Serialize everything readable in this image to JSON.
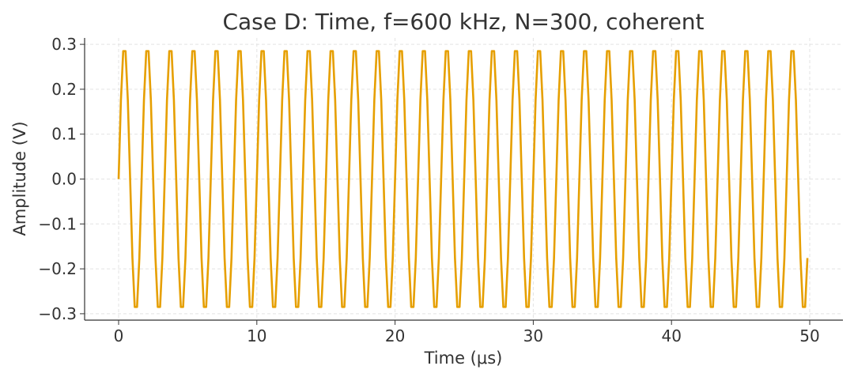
{
  "chart_data": {
    "type": "line",
    "title": "Case D: Time, f=600 kHz, N=300, coherent",
    "xlabel": "Time (μs)",
    "ylabel": "Amplitude (V)",
    "xlim": [
      -2.5,
      52.5
    ],
    "ylim": [
      -0.31,
      0.31
    ],
    "xticks": [
      0,
      10,
      20,
      30,
      40,
      50
    ],
    "yticks": [
      0.3,
      0.2,
      0.1,
      0.0,
      -0.1,
      -0.2,
      -0.3
    ],
    "xtick_labels": [
      "0",
      "10",
      "20",
      "30",
      "40",
      "50"
    ],
    "ytick_labels": [
      "0.3",
      "0.2",
      "0.1",
      "0.0",
      "−0.1",
      "−0.2",
      "−0.3"
    ],
    "grid": true,
    "color": "#E69F00",
    "x_start": 0,
    "x_step": 0.16667,
    "series": [
      {
        "values": [
          0,
          0.176,
          0.285,
          0.285,
          0.176,
          0,
          -0.176,
          -0.285,
          -0.285,
          -0.176,
          0,
          0.176,
          0.285,
          0.285,
          0.176,
          0,
          -0.176,
          -0.285,
          -0.285,
          -0.176,
          0,
          0.176,
          0.285,
          0.285,
          0.176,
          0,
          -0.176,
          -0.285,
          -0.285,
          -0.176,
          0,
          0.176,
          0.285,
          0.285,
          0.176,
          0,
          -0.176,
          -0.285,
          -0.285,
          -0.176,
          0,
          0.176,
          0.285,
          0.285,
          0.176,
          0,
          -0.176,
          -0.285,
          -0.285,
          -0.176,
          0,
          0.176,
          0.285,
          0.285,
          0.176,
          0,
          -0.176,
          -0.285,
          -0.285,
          -0.176,
          0,
          0.176,
          0.285,
          0.285,
          0.176,
          0,
          -0.176,
          -0.285,
          -0.285,
          -0.176,
          0,
          0.176,
          0.285,
          0.285,
          0.176,
          0,
          -0.176,
          -0.285,
          -0.285,
          -0.176,
          0,
          0.176,
          0.285,
          0.285,
          0.176,
          0,
          -0.176,
          -0.285,
          -0.285,
          -0.176,
          0,
          0.176,
          0.285,
          0.285,
          0.176,
          0,
          -0.176,
          -0.285,
          -0.285,
          -0.176,
          0,
          0.176,
          0.285,
          0.285,
          0.176,
          0,
          -0.176,
          -0.285,
          -0.285,
          -0.176,
          0,
          0.176,
          0.285,
          0.285,
          0.176,
          0,
          -0.176,
          -0.285,
          -0.285,
          -0.176,
          0,
          0.176,
          0.285,
          0.285,
          0.176,
          0,
          -0.176,
          -0.285,
          -0.285,
          -0.176,
          0,
          0.176,
          0.285,
          0.285,
          0.176,
          0,
          -0.176,
          -0.285,
          -0.285,
          -0.176,
          0,
          0.176,
          0.285,
          0.285,
          0.176,
          0,
          -0.176,
          -0.285,
          -0.285,
          -0.176,
          0,
          0.176,
          0.285,
          0.285,
          0.176,
          0,
          -0.176,
          -0.285,
          -0.285,
          -0.176,
          0,
          0.176,
          0.285,
          0.285,
          0.176,
          0,
          -0.176,
          -0.285,
          -0.285,
          -0.176,
          0,
          0.176,
          0.285,
          0.285,
          0.176,
          0,
          -0.176,
          -0.285,
          -0.285,
          -0.176,
          0,
          0.176,
          0.285,
          0.285,
          0.176,
          0,
          -0.176,
          -0.285,
          -0.285,
          -0.176,
          0,
          0.176,
          0.285,
          0.285,
          0.176,
          0,
          -0.176,
          -0.285,
          -0.285,
          -0.176,
          0,
          0.176,
          0.285,
          0.285,
          0.176,
          0,
          -0.176,
          -0.285,
          -0.285,
          -0.176,
          0,
          0.176,
          0.285,
          0.285,
          0.176,
          0,
          -0.176,
          -0.285,
          -0.285,
          -0.176,
          0,
          0.176,
          0.285,
          0.285,
          0.176,
          0,
          -0.176,
          -0.285,
          -0.285,
          -0.176,
          0,
          0.176,
          0.285,
          0.285,
          0.176,
          0,
          -0.176,
          -0.285,
          -0.285,
          -0.176,
          0,
          0.176,
          0.285,
          0.285,
          0.176,
          0,
          -0.176,
          -0.285,
          -0.285,
          -0.176,
          0,
          0.176,
          0.285,
          0.285,
          0.176,
          0,
          -0.176,
          -0.285,
          -0.285,
          -0.176,
          0,
          0.176,
          0.285,
          0.285,
          0.176,
          0,
          -0.176,
          -0.285,
          -0.285,
          -0.176,
          0,
          0.176,
          0.285,
          0.285,
          0.176,
          0,
          -0.176,
          -0.285,
          -0.285,
          -0.176,
          0,
          0.176,
          0.285,
          0.285,
          0.176,
          0,
          -0.176,
          -0.285,
          -0.285,
          -0.176,
          0,
          0.176,
          0.285,
          0.285,
          0.176,
          0,
          -0.176,
          -0.285,
          -0.285,
          -0.176
        ]
      }
    ]
  }
}
